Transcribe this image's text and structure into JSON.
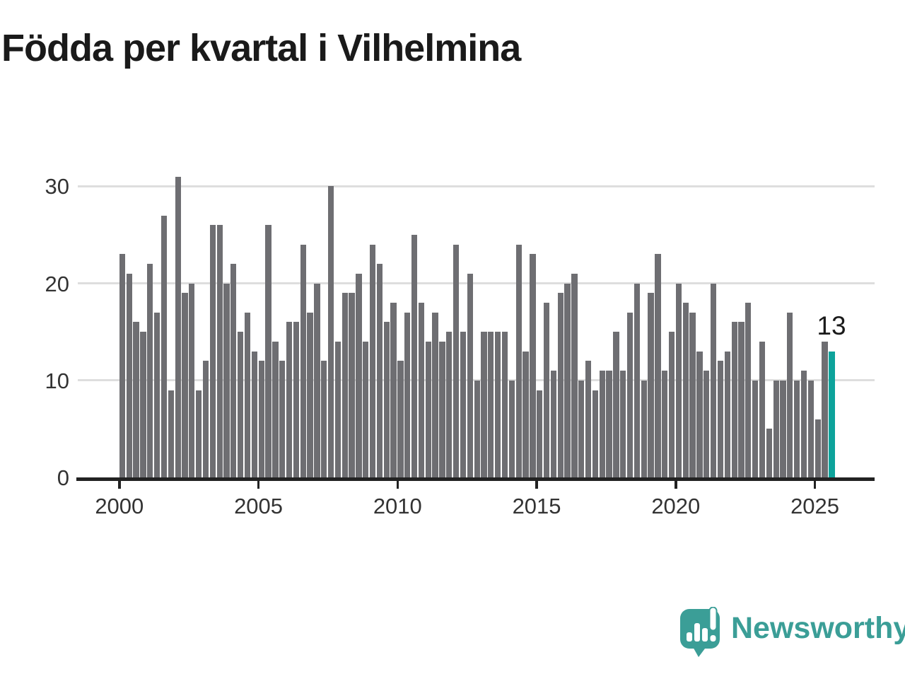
{
  "title": "Födda per kvartal i Vilhelmina",
  "branding": {
    "wordmark": "Newsworthy"
  },
  "colors": {
    "bar": "#6e6e72",
    "highlight": "#0da39b",
    "grid": "#dedede",
    "axis": "#222222",
    "tick_text": "#333333",
    "logo_teal": "#3b9e97",
    "background": "#ffffff"
  },
  "chart_data": {
    "type": "bar",
    "title": "Födda per kvartal i Vilhelmina",
    "x_unit": "quarter",
    "grid": "horizontal",
    "legend": "none",
    "ylim": [
      0,
      31
    ],
    "yticks": [
      0,
      10,
      20,
      30
    ],
    "xticks": [
      "2000",
      "2005",
      "2010",
      "2015",
      "2020",
      "2025"
    ],
    "highlight_index": 102,
    "highlight_value_label": "13",
    "categories": [
      "2000Q1",
      "2000Q2",
      "2000Q3",
      "2000Q4",
      "2001Q1",
      "2001Q2",
      "2001Q3",
      "2001Q4",
      "2002Q1",
      "2002Q2",
      "2002Q3",
      "2002Q4",
      "2003Q1",
      "2003Q2",
      "2003Q3",
      "2003Q4",
      "2004Q1",
      "2004Q2",
      "2004Q3",
      "2004Q4",
      "2005Q1",
      "2005Q2",
      "2005Q3",
      "2005Q4",
      "2006Q1",
      "2006Q2",
      "2006Q3",
      "2006Q4",
      "2007Q1",
      "2007Q2",
      "2007Q3",
      "2007Q4",
      "2008Q1",
      "2008Q2",
      "2008Q3",
      "2008Q4",
      "2009Q1",
      "2009Q2",
      "2009Q3",
      "2009Q4",
      "2010Q1",
      "2010Q2",
      "2010Q3",
      "2010Q4",
      "2011Q1",
      "2011Q2",
      "2011Q3",
      "2011Q4",
      "2012Q1",
      "2012Q2",
      "2012Q3",
      "2012Q4",
      "2013Q1",
      "2013Q2",
      "2013Q3",
      "2013Q4",
      "2014Q1",
      "2014Q2",
      "2014Q3",
      "2014Q4",
      "2015Q1",
      "2015Q2",
      "2015Q3",
      "2015Q4",
      "2016Q1",
      "2016Q2",
      "2016Q3",
      "2016Q4",
      "2017Q1",
      "2017Q2",
      "2017Q3",
      "2017Q4",
      "2018Q1",
      "2018Q2",
      "2018Q3",
      "2018Q4",
      "2019Q1",
      "2019Q2",
      "2019Q3",
      "2019Q4",
      "2020Q1",
      "2020Q2",
      "2020Q3",
      "2020Q4",
      "2021Q1",
      "2021Q2",
      "2021Q3",
      "2021Q4",
      "2022Q1",
      "2022Q2",
      "2022Q3",
      "2022Q4",
      "2023Q1",
      "2023Q2",
      "2023Q3",
      "2023Q4",
      "2024Q1",
      "2024Q2",
      "2024Q3",
      "2024Q4",
      "2025Q1",
      "2025Q2",
      "2025Q3"
    ],
    "values": [
      23,
      21,
      16,
      15,
      22,
      17,
      27,
      9,
      31,
      19,
      20,
      9,
      12,
      26,
      26,
      20,
      22,
      15,
      17,
      13,
      12,
      26,
      14,
      12,
      16,
      16,
      24,
      17,
      20,
      12,
      30,
      14,
      19,
      19,
      21,
      14,
      24,
      22,
      16,
      18,
      12,
      17,
      25,
      18,
      14,
      17,
      14,
      15,
      24,
      15,
      21,
      10,
      15,
      15,
      15,
      15,
      10,
      24,
      13,
      23,
      9,
      18,
      11,
      19,
      20,
      21,
      10,
      12,
      9,
      11,
      11,
      15,
      11,
      17,
      20,
      10,
      19,
      23,
      11,
      15,
      20,
      18,
      17,
      13,
      11,
      20,
      12,
      13,
      16,
      16,
      18,
      10,
      14,
      5,
      10,
      10,
      17,
      10,
      11,
      10,
      6,
      14,
      13
    ]
  }
}
